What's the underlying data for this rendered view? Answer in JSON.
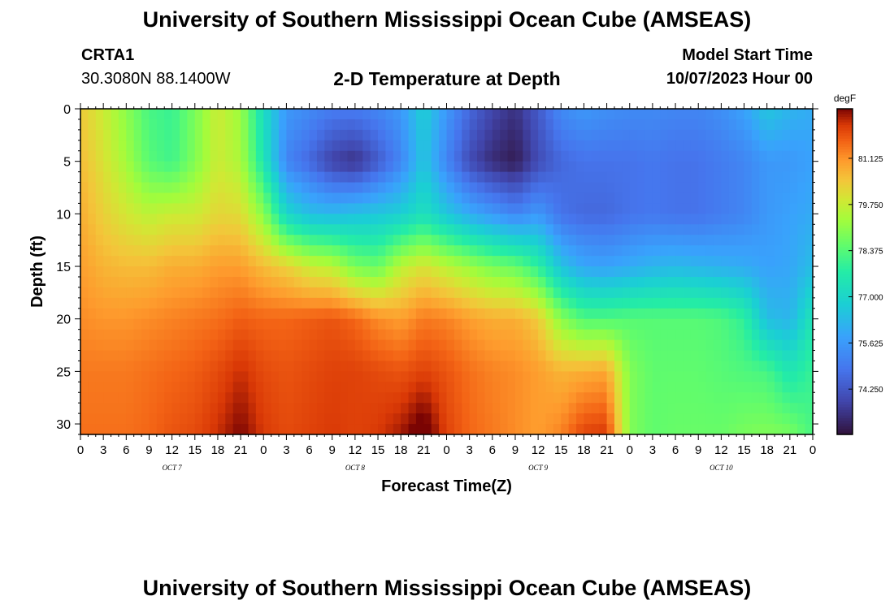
{
  "header": {
    "title": "University of Southern Mississippi Ocean Cube (AMSEAS)",
    "station_id": "CRTA1",
    "station_location": "30.3080N  88.1400W",
    "chart_title": "2-D Temperature at Depth",
    "model_start_label": "Model Start Time",
    "model_start_value": "10/07/2023 Hour 00"
  },
  "footer": {
    "title": "University of Southern Mississippi Ocean Cube (AMSEAS)"
  },
  "chart_data": {
    "type": "heatmap",
    "title": "2-D Temperature at Depth",
    "xlabel": "Forecast Time(Z)",
    "ylabel": "Depth (ft)",
    "x_unit": "hours",
    "x_range": [
      0,
      96
    ],
    "y_range": [
      0,
      31
    ],
    "y_inverted": true,
    "x_ticks": [
      0,
      3,
      6,
      9,
      12,
      15,
      18,
      21,
      24,
      27,
      30,
      33,
      36,
      39,
      42,
      45,
      48,
      51,
      54,
      57,
      60,
      63,
      66,
      69,
      72,
      75,
      78,
      81,
      84,
      87,
      90,
      93,
      96
    ],
    "x_tick_labels": [
      "0",
      "3",
      "6",
      "9",
      "12",
      "15",
      "18",
      "21",
      "0",
      "3",
      "6",
      "9",
      "12",
      "15",
      "18",
      "21",
      "0",
      "3",
      "6",
      "9",
      "12",
      "15",
      "18",
      "21",
      "0",
      "3",
      "6",
      "9",
      "12",
      "15",
      "18",
      "21",
      "0"
    ],
    "day_labels": [
      {
        "label": "OCT 7",
        "hour": 12
      },
      {
        "label": "OCT 8",
        "hour": 36
      },
      {
        "label": "OCT 9",
        "hour": 60
      },
      {
        "label": "OCT 10",
        "hour": 84
      }
    ],
    "y_ticks": [
      0,
      5,
      10,
      15,
      20,
      25,
      30
    ],
    "colorbar": {
      "unit": "degF",
      "range": [
        72.9,
        82.6
      ],
      "ticks": [
        74.25,
        75.625,
        77.0,
        78.375,
        79.75,
        81.125
      ],
      "tick_labels": [
        "74.250",
        "75.625",
        "77.000",
        "78.375",
        "79.750",
        "81.125"
      ]
    },
    "series": [
      {
        "hour": 0,
        "temps": [
          80.4,
          80.6,
          80.8,
          81.0,
          81.2,
          81.4,
          81.5
        ]
      },
      {
        "hour": 3,
        "temps": [
          79.8,
          80.0,
          80.3,
          80.7,
          81.1,
          81.4,
          81.5
        ]
      },
      {
        "hour": 6,
        "temps": [
          79.0,
          79.3,
          79.9,
          80.6,
          81.1,
          81.4,
          81.5
        ]
      },
      {
        "hour": 9,
        "temps": [
          78.2,
          78.4,
          79.6,
          80.6,
          81.2,
          81.5,
          81.6
        ]
      },
      {
        "hour": 12,
        "temps": [
          78.0,
          78.1,
          79.8,
          80.8,
          81.3,
          81.6,
          81.8
        ]
      },
      {
        "hour": 15,
        "temps": [
          78.8,
          78.9,
          79.8,
          80.8,
          81.4,
          81.7,
          81.9
        ]
      },
      {
        "hour": 18,
        "temps": [
          79.8,
          79.8,
          80.2,
          81.0,
          81.5,
          81.9,
          82.2
        ]
      },
      {
        "hour": 21,
        "temps": [
          79.2,
          79.4,
          80.1,
          81.0,
          81.7,
          82.2,
          82.6
        ]
      },
      {
        "hour": 24,
        "temps": [
          77.2,
          77.5,
          79.0,
          80.6,
          81.6,
          81.9,
          82.1
        ]
      },
      {
        "hour": 27,
        "temps": [
          75.6,
          75.2,
          77.0,
          80.3,
          81.6,
          81.8,
          81.9
        ]
      },
      {
        "hour": 30,
        "temps": [
          75.3,
          74.6,
          76.4,
          79.8,
          81.7,
          81.9,
          82.0
        ]
      },
      {
        "hour": 33,
        "temps": [
          75.0,
          73.8,
          76.3,
          79.6,
          81.8,
          82.0,
          82.1
        ]
      },
      {
        "hour": 36,
        "temps": [
          75.0,
          73.5,
          76.5,
          78.8,
          81.6,
          82.0,
          82.0
        ]
      },
      {
        "hour": 39,
        "temps": [
          75.2,
          74.3,
          76.6,
          78.6,
          81.2,
          81.9,
          82.1
        ]
      },
      {
        "hour": 42,
        "temps": [
          75.6,
          75.2,
          76.8,
          79.6,
          81.0,
          81.8,
          82.4
        ]
      },
      {
        "hour": 45,
        "temps": [
          76.8,
          76.6,
          77.3,
          80.0,
          81.4,
          82.0,
          82.9
        ]
      },
      {
        "hour": 48,
        "temps": [
          75.6,
          75.2,
          76.6,
          79.6,
          81.3,
          81.8,
          82.0
        ]
      },
      {
        "hour": 51,
        "temps": [
          74.6,
          74.0,
          76.0,
          79.2,
          81.0,
          81.5,
          81.6
        ]
      },
      {
        "hour": 54,
        "temps": [
          73.9,
          73.4,
          75.6,
          78.8,
          80.8,
          81.3,
          81.4
        ]
      },
      {
        "hour": 57,
        "temps": [
          73.5,
          73.1,
          75.2,
          78.6,
          80.8,
          81.2,
          81.2
        ]
      },
      {
        "hour": 60,
        "temps": [
          74.3,
          74.0,
          75.6,
          77.9,
          80.4,
          81.0,
          81.0
        ]
      },
      {
        "hour": 63,
        "temps": [
          75.3,
          74.6,
          74.8,
          76.5,
          79.0,
          80.7,
          81.3
        ]
      },
      {
        "hour": 66,
        "temps": [
          75.6,
          74.8,
          74.6,
          75.9,
          78.3,
          80.8,
          82.0
        ]
      },
      {
        "hour": 69,
        "temps": [
          75.4,
          74.8,
          74.6,
          75.8,
          78.3,
          80.9,
          82.1
        ]
      },
      {
        "hour": 72,
        "temps": [
          75.3,
          74.8,
          74.8,
          76.0,
          78.4,
          78.9,
          78.9
        ]
      },
      {
        "hour": 75,
        "temps": [
          75.3,
          74.9,
          74.9,
          76.2,
          78.4,
          78.5,
          78.5
        ]
      },
      {
        "hour": 78,
        "temps": [
          75.2,
          74.8,
          74.8,
          76.3,
          78.4,
          78.5,
          78.6
        ]
      },
      {
        "hour": 81,
        "temps": [
          75.2,
          74.8,
          74.8,
          76.2,
          78.4,
          78.5,
          78.6
        ]
      },
      {
        "hour": 84,
        "temps": [
          75.4,
          75.0,
          75.0,
          76.1,
          78.3,
          78.4,
          78.6
        ]
      },
      {
        "hour": 87,
        "temps": [
          75.8,
          75.2,
          75.2,
          76.0,
          77.9,
          78.3,
          78.8
        ]
      },
      {
        "hour": 90,
        "temps": [
          76.6,
          75.6,
          75.6,
          75.8,
          76.4,
          78.2,
          78.9
        ]
      },
      {
        "hour": 93,
        "temps": [
          76.2,
          75.6,
          75.8,
          75.9,
          76.2,
          77.5,
          78.8
        ]
      },
      {
        "hour": 96,
        "temps": [
          76.0,
          75.8,
          76.0,
          76.4,
          77.5,
          78.0,
          78.2
        ]
      }
    ],
    "depths": [
      0,
      5,
      10,
      15,
      20,
      25,
      31
    ]
  }
}
